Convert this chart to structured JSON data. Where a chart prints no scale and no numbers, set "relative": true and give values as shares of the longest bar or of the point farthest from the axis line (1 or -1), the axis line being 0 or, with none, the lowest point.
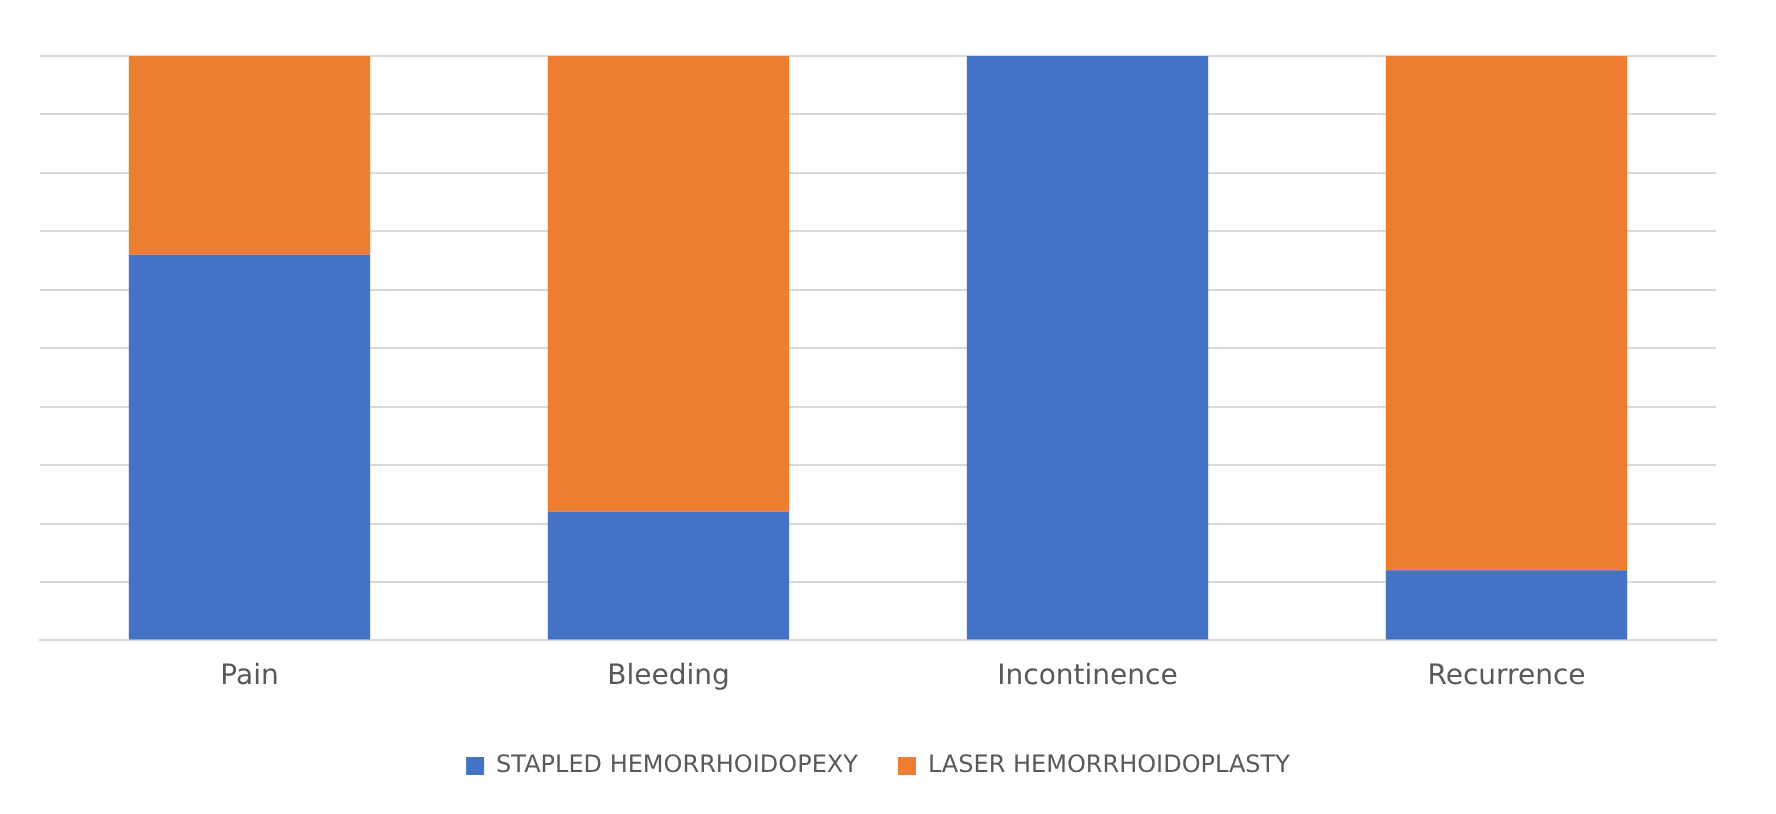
{
  "chart_data": {
    "type": "bar",
    "stacked": true,
    "relative": true,
    "grid": "y",
    "legend": "bottom",
    "categories": [
      "Pain",
      "Bleeding",
      "Incontinence",
      "Recurrence"
    ],
    "series": [
      {
        "name": "STAPLED HEMORRHOIDOPEXY",
        "color": "#4472c4",
        "values": [
          0.66,
          0.22,
          1,
          0.12
        ]
      },
      {
        "name": "LASER HEMORRHOIDOPLASTY",
        "color": "#ed7d31",
        "values": [
          0.34,
          0.78,
          0,
          0.88
        ]
      }
    ]
  }
}
